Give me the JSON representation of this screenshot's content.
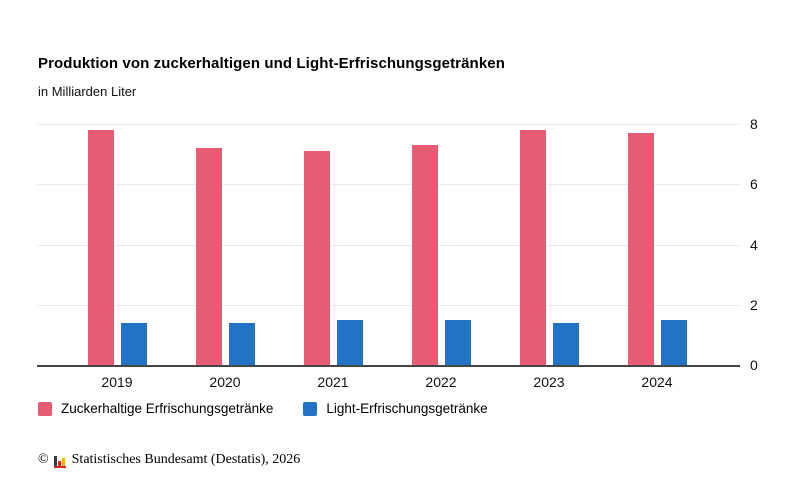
{
  "header": {
    "title": "Produktion von zuckerhaltigen und Light-Erfrischungsgetränken",
    "subtitle": "in Milliarden Liter"
  },
  "chart_data": {
    "type": "bar",
    "title": "Produktion von zuckerhaltigen und Light-Erfrischungsgetränken",
    "subtitle_unit": "in Milliarden Liter",
    "categories": [
      "2019",
      "2020",
      "2021",
      "2022",
      "2023",
      "2024"
    ],
    "series": [
      {
        "name": "Zuckerhaltige Erfrischungsgetränke",
        "color": "#e65c74",
        "values": [
          7.8,
          7.2,
          7.1,
          7.3,
          7.8,
          7.7
        ]
      },
      {
        "name": "Light-Erfrischungsgetränke",
        "color": "#2272c8",
        "values": [
          1.4,
          1.4,
          1.5,
          1.5,
          1.4,
          1.5
        ]
      }
    ],
    "xlabel": "",
    "ylabel": "in Milliarden Liter",
    "ylim": [
      0,
      8
    ],
    "y_ticks": [
      0,
      2,
      4,
      6,
      8
    ],
    "grid": true,
    "y_axis_side": "right",
    "legend_position": "bottom"
  },
  "legend": {
    "items": [
      {
        "label": "Zuckerhaltige Erfrischungsgetränke",
        "color": "#e65c74"
      },
      {
        "label": "Light-Erfrischungsgetränke",
        "color": "#2272c8"
      }
    ]
  },
  "footer": {
    "copyright_symbol": "©",
    "source": "Statistisches Bundesamt (Destatis), 2026"
  },
  "colors": {
    "series_sugary": "#e65c74",
    "series_light": "#2272c8",
    "gridline": "#ebebeb",
    "axis": "#444444"
  }
}
